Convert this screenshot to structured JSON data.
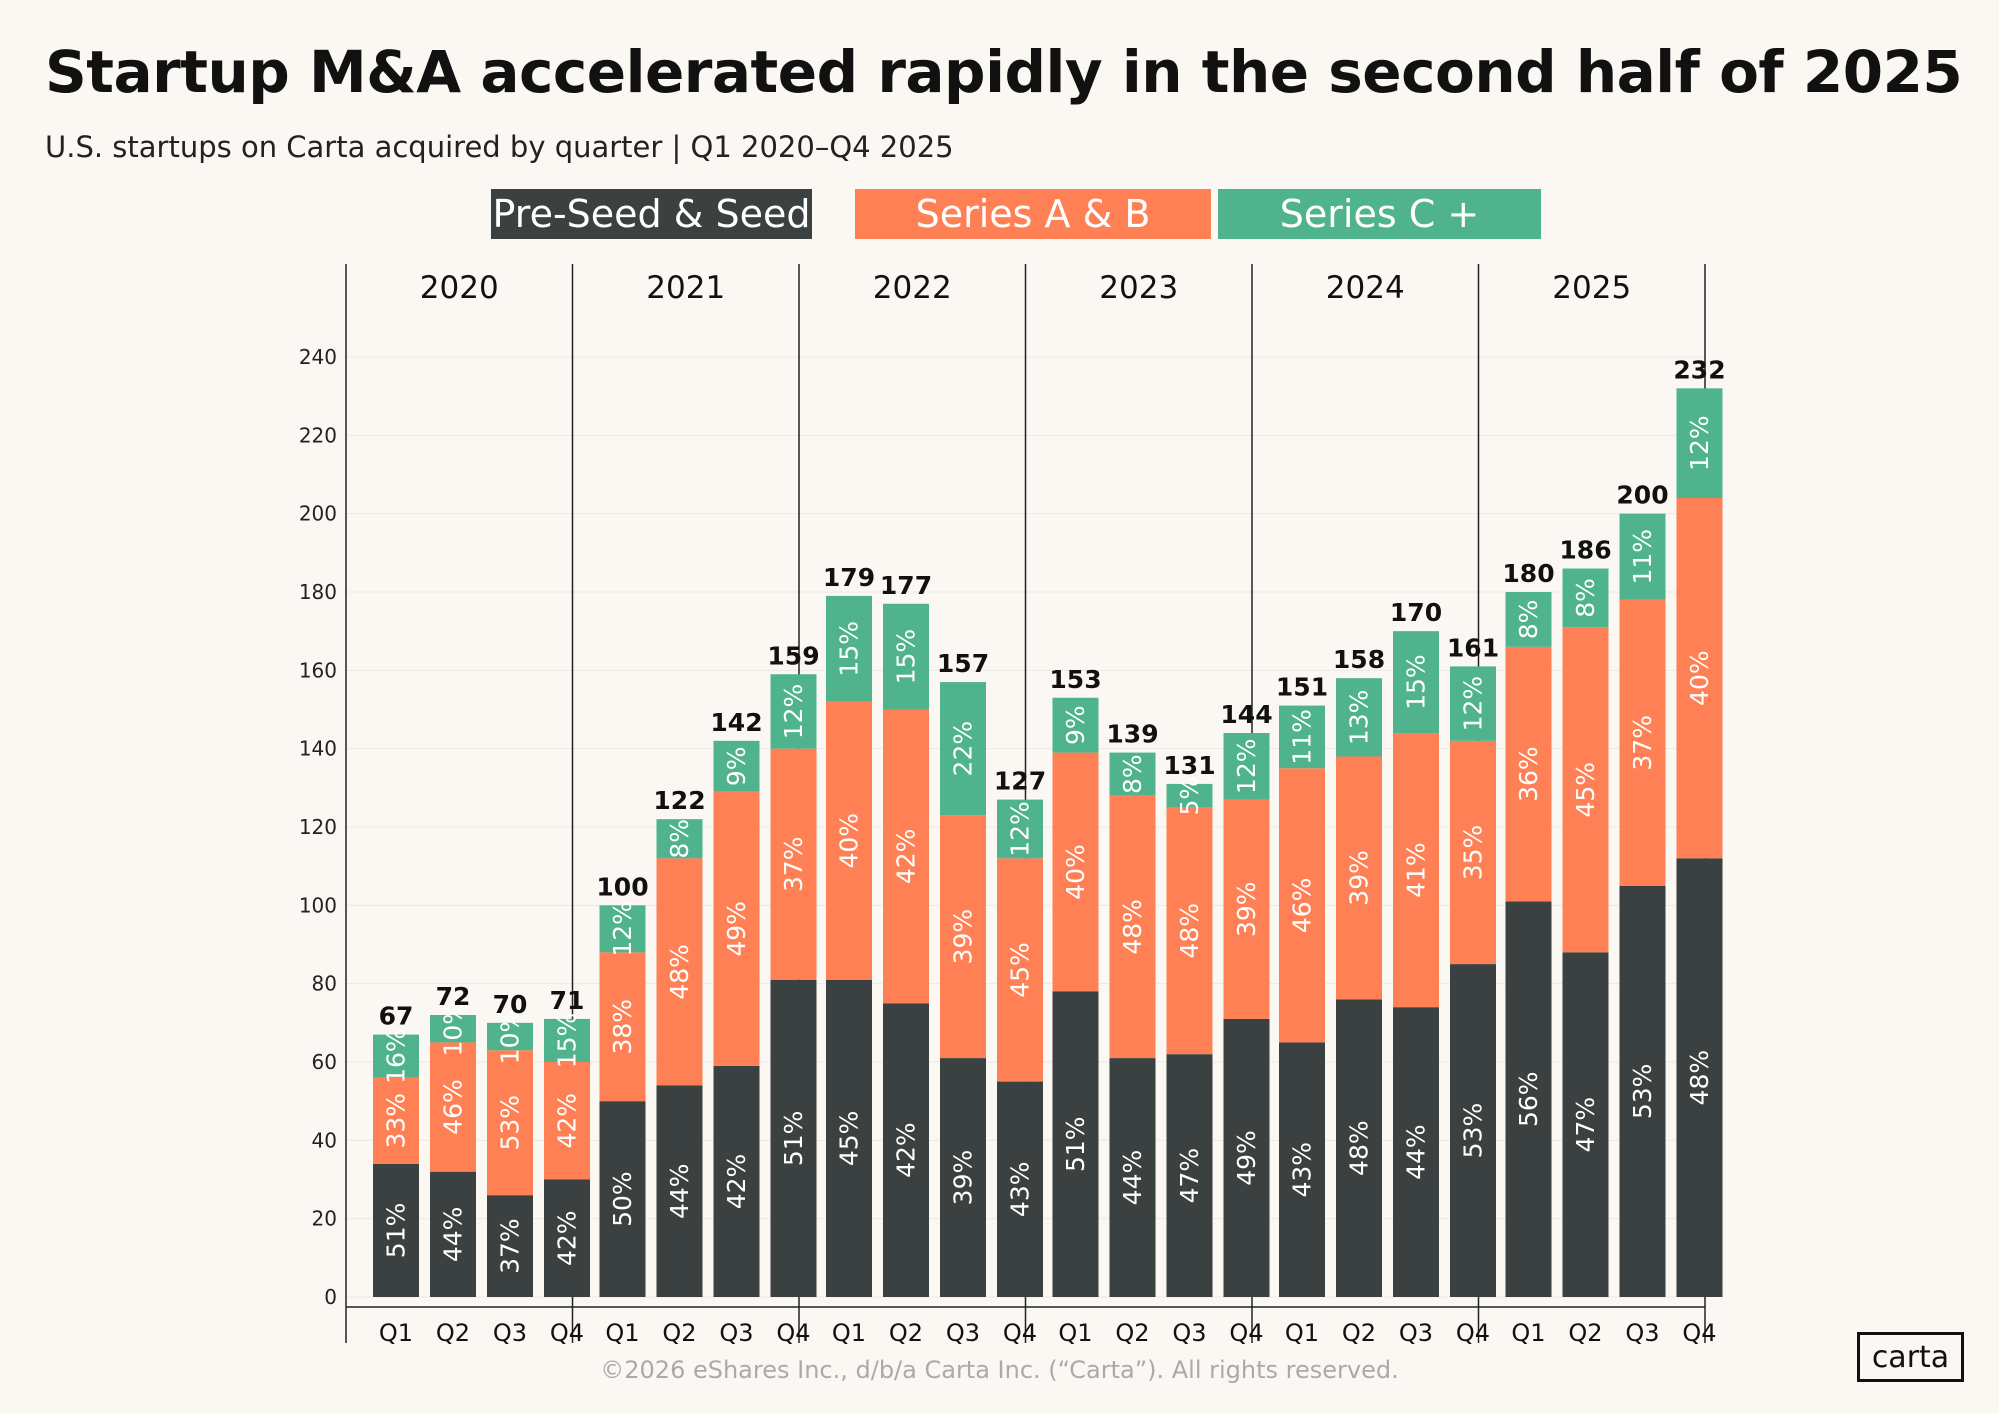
{
  "title": "Startup M&A accelerated rapidly in the second half of 2025",
  "subtitle": "U.S. startups on Carta acquired by quarter | Q1 2020–Q4 2025",
  "legend": [
    {
      "label": "Pre-Seed & Seed",
      "color": "#3a4140"
    },
    {
      "label": "Series A & B",
      "color": "#ff8055"
    },
    {
      "label": "Series C +",
      "color": "#4fb38d"
    }
  ],
  "footer": "©2026 eShares Inc., d/b/a Carta Inc. (“Carta”). All rights reserved.",
  "logo": "carta",
  "chart_data": {
    "type": "bar",
    "stacked": true,
    "title": "Startup M&A accelerated rapidly in the second half of 2025",
    "ylim": [
      0,
      250
    ],
    "yticks": [
      0,
      20,
      40,
      60,
      80,
      100,
      120,
      140,
      160,
      180,
      200,
      220,
      240
    ],
    "groups": [
      "2020",
      "2021",
      "2022",
      "2023",
      "2024",
      "2025"
    ],
    "quarters": [
      "Q1",
      "Q2",
      "Q3",
      "Q4"
    ],
    "series": [
      {
        "name": "Pre-Seed & Seed",
        "color": "#3a4140",
        "values": [
          34,
          32,
          26,
          30,
          50,
          54,
          59,
          81,
          81,
          75,
          61,
          55,
          78,
          61,
          62,
          71,
          65,
          76,
          74,
          85,
          101,
          88,
          105,
          112
        ]
      },
      {
        "name": "Series A & B",
        "color": "#ff8055",
        "values": [
          22,
          33,
          37,
          30,
          38,
          58,
          70,
          59,
          71,
          75,
          62,
          57,
          61,
          67,
          63,
          56,
          70,
          62,
          70,
          57,
          65,
          83,
          73,
          92
        ]
      },
      {
        "name": "Series C +",
        "color": "#4fb38d",
        "values": [
          11,
          7,
          7,
          11,
          12,
          10,
          13,
          19,
          27,
          27,
          34,
          15,
          14,
          11,
          6,
          17,
          16,
          20,
          26,
          19,
          14,
          15,
          22,
          28
        ]
      }
    ],
    "labels": {
      "Pre-Seed & Seed": [
        "51%",
        "44%",
        "37%",
        "42%",
        "50%",
        "44%",
        "42%",
        "51%",
        "45%",
        "42%",
        "39%",
        "43%",
        "51%",
        "44%",
        "47%",
        "49%",
        "43%",
        "48%",
        "44%",
        "53%",
        "56%",
        "47%",
        "53%",
        "48%"
      ],
      "Series A & B": [
        "33%",
        "46%",
        "53%",
        "42%",
        "38%",
        "48%",
        "49%",
        "37%",
        "40%",
        "42%",
        "39%",
        "45%",
        "40%",
        "48%",
        "48%",
        "39%",
        "46%",
        "39%",
        "41%",
        "35%",
        "36%",
        "45%",
        "37%",
        "40%"
      ],
      "Series C +": [
        "16%",
        "10%",
        "10%",
        "15%",
        "12%",
        "8%",
        "9%",
        "12%",
        "15%",
        "15%",
        "22%",
        "12%",
        "9%",
        "8%",
        "5%",
        "12%",
        "11%",
        "13%",
        "15%",
        "12%",
        "8%",
        "8%",
        "11%",
        "12%"
      ]
    },
    "totals": [
      67,
      72,
      70,
      71,
      100,
      122,
      142,
      159,
      179,
      177,
      157,
      127,
      153,
      139,
      131,
      144,
      151,
      158,
      170,
      161,
      180,
      186,
      200,
      232
    ]
  }
}
